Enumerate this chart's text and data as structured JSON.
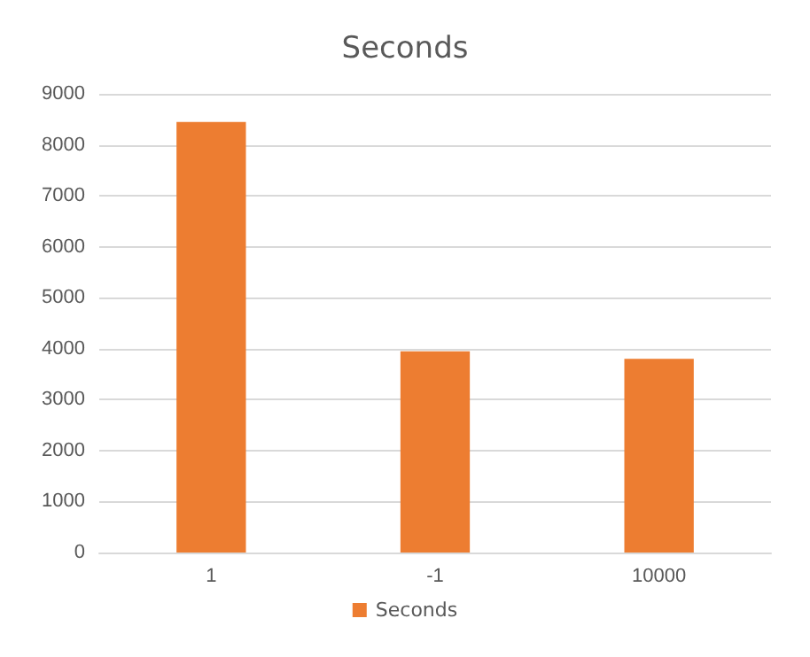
{
  "chart_data": {
    "type": "bar",
    "title": "Seconds",
    "categories": [
      "1",
      "-1",
      "10000"
    ],
    "series": [
      {
        "name": "Seconds",
        "color": "#ed7d31",
        "values": [
          8450,
          3950,
          3800
        ]
      }
    ],
    "ylim": [
      0,
      9000
    ],
    "yticks": [
      0,
      1000,
      2000,
      3000,
      4000,
      5000,
      6000,
      7000,
      8000,
      9000
    ],
    "grid": "y",
    "legend": "bottom"
  }
}
